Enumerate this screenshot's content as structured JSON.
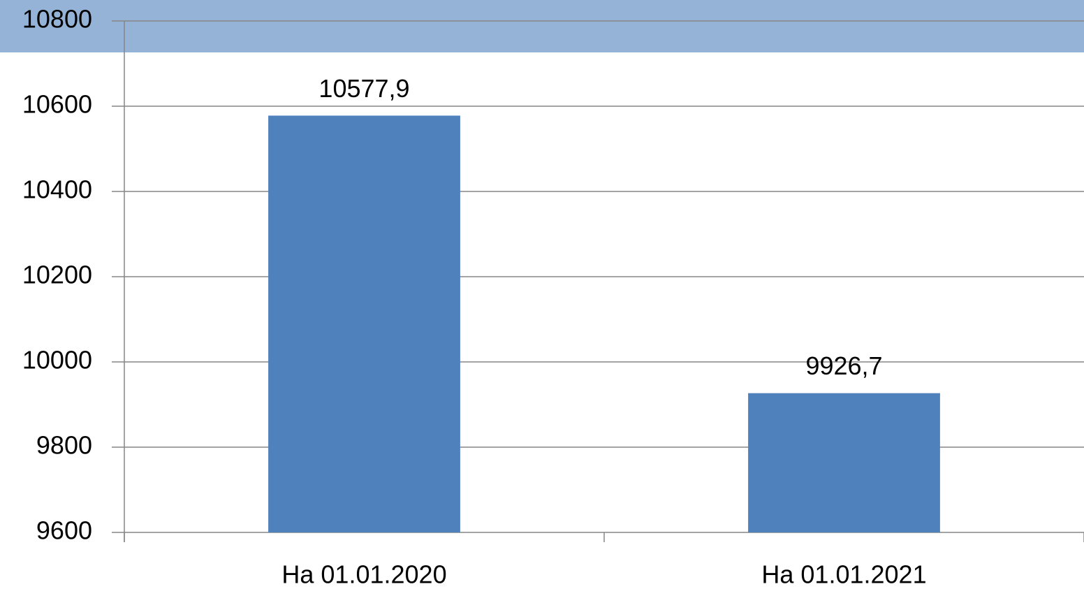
{
  "chart_data": {
    "type": "bar",
    "categories": [
      "На 01.01.2020",
      "На 01.01.2021"
    ],
    "values": [
      10577.9,
      9926.7
    ],
    "value_labels": [
      "10577,9",
      "9926,7"
    ],
    "color": "#4f81bd",
    "ylim": [
      9600,
      10800
    ],
    "yticks": [
      9600,
      9800,
      10000,
      10200,
      10400,
      10600,
      10800
    ],
    "grid": true
  }
}
